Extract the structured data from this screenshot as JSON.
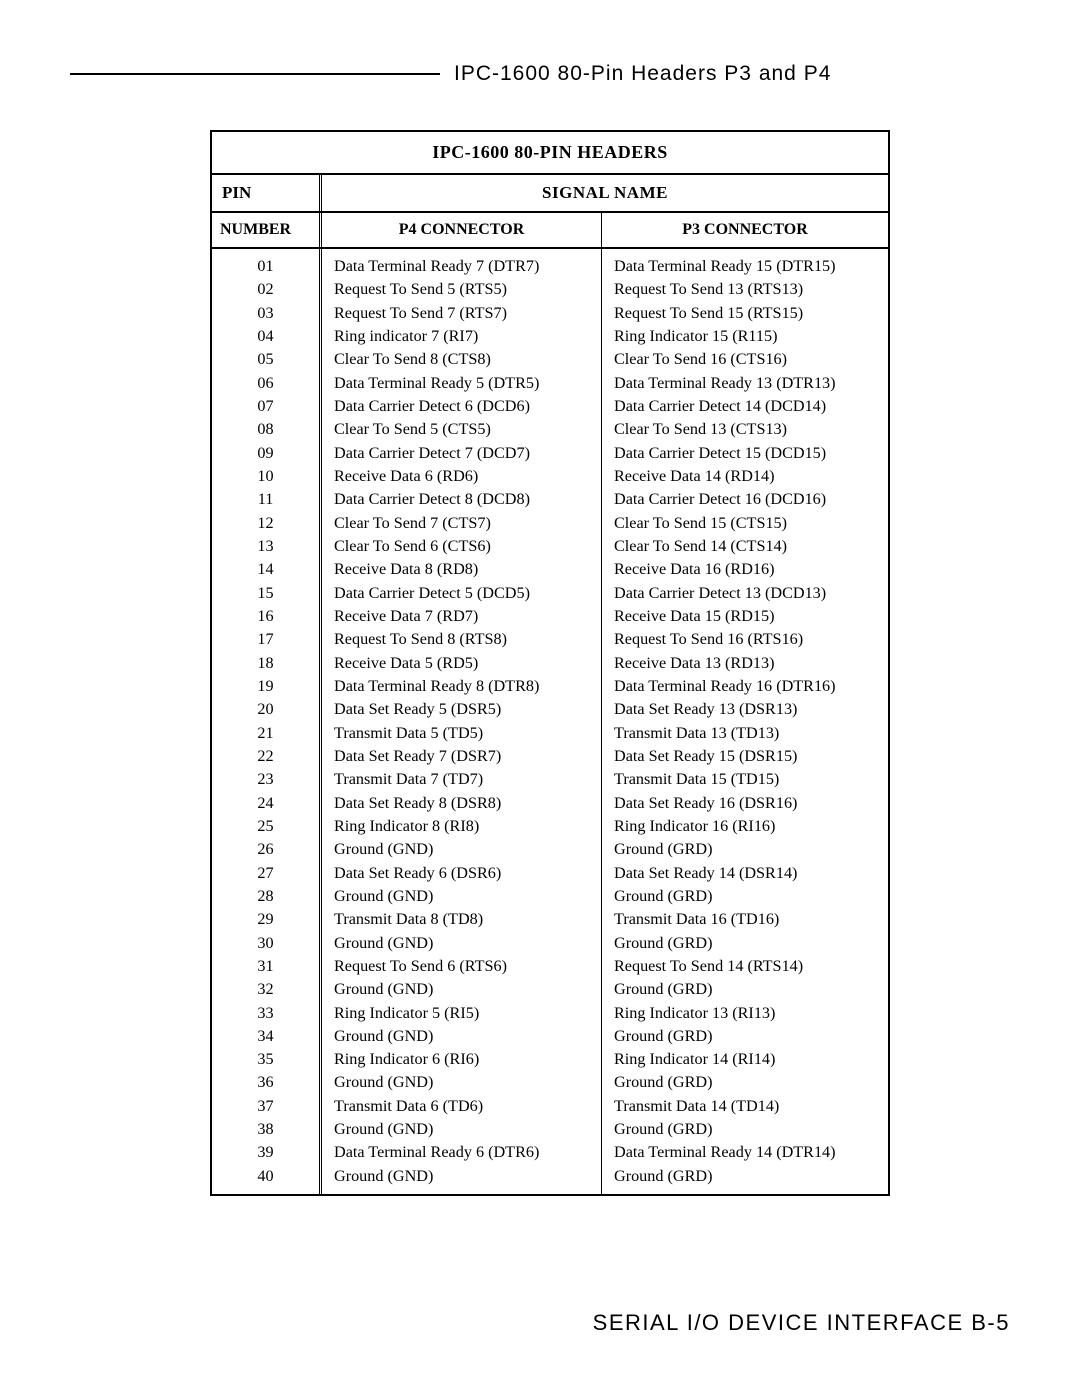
{
  "header": {
    "rule_title": "IPC-1600 80-Pin Headers P3 and P4"
  },
  "table": {
    "title": "IPC-1600 80-PIN HEADERS",
    "pin_label": "PIN",
    "signal_label": "SIGNAL NAME",
    "number_label": "NUMBER",
    "p4_label": "P4 CONNECTOR",
    "p3_label": "P3 CONNECTOR",
    "rows": [
      {
        "pin": "01",
        "p4": "Data Terminal Ready 7 (DTR7)",
        "p3": "Data Terminal Ready 15 (DTR15)"
      },
      {
        "pin": "02",
        "p4": "Request To Send 5 (RTS5)",
        "p3": "Request To Send 13 (RTS13)"
      },
      {
        "pin": "03",
        "p4": "Request To Send 7 (RTS7)",
        "p3": "Request To Send 15 (RTS15)"
      },
      {
        "pin": "04",
        "p4": "Ring indicator 7 (RI7)",
        "p3": "Ring Indicator 15 (R115)"
      },
      {
        "pin": "05",
        "p4": "Clear To Send 8 (CTS8)",
        "p3": "Clear To Send 16 (CTS16)"
      },
      {
        "pin": "06",
        "p4": "Data Terminal Ready 5 (DTR5)",
        "p3": "Data Terminal Ready 13 (DTR13)"
      },
      {
        "pin": "07",
        "p4": "Data Carrier Detect 6 (DCD6)",
        "p3": "Data Carrier Detect 14 (DCD14)"
      },
      {
        "pin": "08",
        "p4": "Clear To Send 5 (CTS5)",
        "p3": "Clear To Send 13 (CTS13)"
      },
      {
        "pin": "09",
        "p4": "Data Carrier Detect 7 (DCD7)",
        "p3": "Data Carrier Detect 15 (DCD15)"
      },
      {
        "pin": "10",
        "p4": "Receive Data 6 (RD6)",
        "p3": "Receive Data 14 (RD14)"
      },
      {
        "pin": "11",
        "p4": "Data Carrier Detect 8 (DCD8)",
        "p3": "Data Carrier Detect 16 (DCD16)"
      },
      {
        "pin": "12",
        "p4": "Clear To Send 7 (CTS7)",
        "p3": "Clear To Send 15 (CTS15)"
      },
      {
        "pin": "13",
        "p4": "Clear To Send 6 (CTS6)",
        "p3": "Clear To Send 14 (CTS14)"
      },
      {
        "pin": "14",
        "p4": "Receive Data 8 (RD8)",
        "p3": "Receive Data 16 (RD16)"
      },
      {
        "pin": "15",
        "p4": "Data Carrier Detect 5 (DCD5)",
        "p3": "Data Carrier Detect 13 (DCD13)"
      },
      {
        "pin": "16",
        "p4": "Receive Data 7 (RD7)",
        "p3": "Receive Data 15 (RD15)"
      },
      {
        "pin": "17",
        "p4": "Request To Send 8 (RTS8)",
        "p3": "Request To Send 16 (RTS16)"
      },
      {
        "pin": "18",
        "p4": "Receive Data 5 (RD5)",
        "p3": "Receive Data 13 (RD13)"
      },
      {
        "pin": "19",
        "p4": "Data Terminal Ready 8 (DTR8)",
        "p3": "Data Terminal Ready 16 (DTR16)"
      },
      {
        "pin": "20",
        "p4": "Data Set Ready 5 (DSR5)",
        "p3": "Data Set Ready 13 (DSR13)"
      },
      {
        "pin": "21",
        "p4": "Transmit Data 5 (TD5)",
        "p3": "Transmit Data 13 (TD13)"
      },
      {
        "pin": "22",
        "p4": "Data Set Ready 7 (DSR7)",
        "p3": "Data Set Ready 15 (DSR15)"
      },
      {
        "pin": "23",
        "p4": "Transmit Data 7 (TD7)",
        "p3": "Transmit Data 15 (TD15)"
      },
      {
        "pin": "24",
        "p4": "Data Set Ready 8 (DSR8)",
        "p3": "Data Set Ready 16 (DSR16)"
      },
      {
        "pin": "25",
        "p4": "Ring Indicator 8 (RI8)",
        "p3": "Ring Indicator 16 (RI16)"
      },
      {
        "pin": "26",
        "p4": "Ground (GND)",
        "p3": "Ground (GRD)"
      },
      {
        "pin": "27",
        "p4": "Data Set Ready 6 (DSR6)",
        "p3": "Data Set Ready 14 (DSR14)"
      },
      {
        "pin": "28",
        "p4": "Ground (GND)",
        "p3": "Ground (GRD)"
      },
      {
        "pin": "29",
        "p4": "Transmit Data 8 (TD8)",
        "p3": "Transmit Data 16 (TD16)"
      },
      {
        "pin": "30",
        "p4": "Ground (GND)",
        "p3": "Ground (GRD)"
      },
      {
        "pin": "31",
        "p4": "Request To Send 6 (RTS6)",
        "p3": "Request To Send 14 (RTS14)"
      },
      {
        "pin": "32",
        "p4": "Ground (GND)",
        "p3": "Ground (GRD)"
      },
      {
        "pin": "33",
        "p4": "Ring Indicator 5 (RI5)",
        "p3": "Ring Indicator 13 (RI13)"
      },
      {
        "pin": "34",
        "p4": "Ground (GND)",
        "p3": "Ground (GRD)"
      },
      {
        "pin": "35",
        "p4": "Ring Indicator 6 (RI6)",
        "p3": "Ring Indicator 14 (RI14)"
      },
      {
        "pin": "36",
        "p4": "Ground (GND)",
        "p3": "Ground (GRD)"
      },
      {
        "pin": "37",
        "p4": "Transmit Data 6 (TD6)",
        "p3": "Transmit Data 14 (TD14)"
      },
      {
        "pin": "38",
        "p4": "Ground (GND)",
        "p3": "Ground (GRD)"
      },
      {
        "pin": "39",
        "p4": "Data Terminal Ready 6 (DTR6)",
        "p3": "Data Terminal Ready 14 (DTR14)"
      },
      {
        "pin": "40",
        "p4": "Ground (GND)",
        "p3": "Ground (GRD)"
      }
    ]
  },
  "footer": {
    "text": "SERIAL I/O DEVICE INTERFACE   B-5"
  }
}
